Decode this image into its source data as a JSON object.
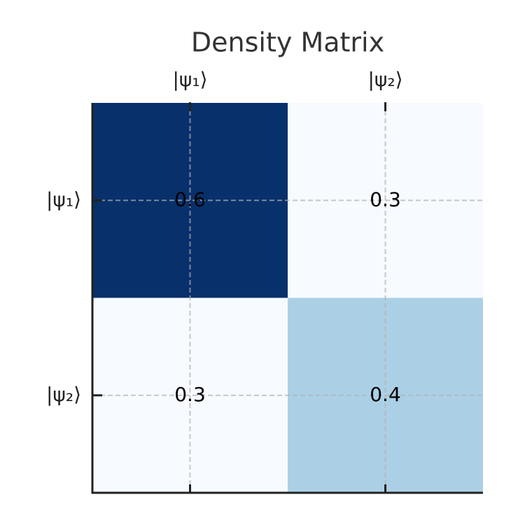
{
  "chart_data": {
    "type": "heatmap",
    "title": "Density Matrix",
    "x_categories": [
      "|ψ₁⟩",
      "|ψ₂⟩"
    ],
    "y_categories": [
      "|ψ₁⟩",
      "|ψ₂⟩"
    ],
    "values": [
      [
        0.6,
        0.3
      ],
      [
        0.3,
        0.4
      ]
    ],
    "colormap": [
      "#f7fbff",
      "#deebf7",
      "#c6dbef",
      "#9ecae1",
      "#6baed6",
      "#4292c6",
      "#2171b5",
      "#08519c",
      "#08306b"
    ],
    "clim": [
      0.3,
      0.6
    ],
    "grid": true
  }
}
